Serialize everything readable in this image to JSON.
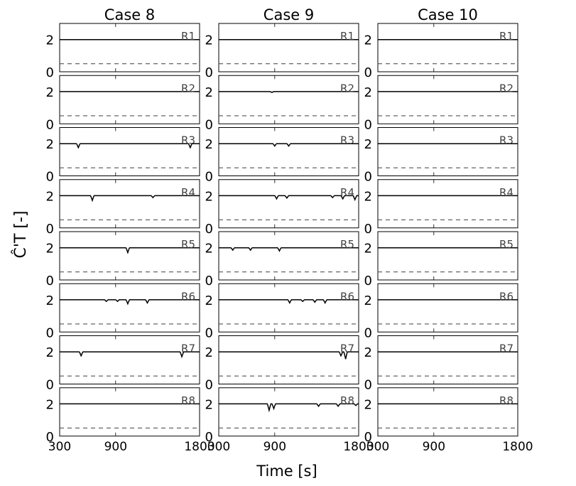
{
  "chart_data": {
    "type": "line",
    "xlabel": "Time [s]",
    "ylabel": "Ĉ'T [-]",
    "xlim": [
      300,
      1800
    ],
    "ylim": [
      0,
      3
    ],
    "xticks": [
      "300",
      "900",
      "1800"
    ],
    "yticks": [
      "0",
      "2"
    ],
    "columns": [
      "Case 8",
      "Case 9",
      "Case 10"
    ],
    "rows": [
      "R1",
      "R2",
      "R3",
      "R4",
      "R5",
      "R6",
      "R7",
      "R8"
    ],
    "series": [
      {
        "style": "solid",
        "baseline": 2.0
      },
      {
        "style": "dashed",
        "baseline": 0.5
      }
    ],
    "dips": [
      [
        [],
        [],
        [
          [
            500,
            0.25
          ],
          [
            1700,
            0.25
          ]
        ],
        [
          [
            650,
            0.3
          ],
          [
            1300,
            0.12
          ]
        ],
        [
          [
            1030,
            0.3
          ]
        ],
        [
          [
            800,
            0.1
          ],
          [
            920,
            0.1
          ],
          [
            1030,
            0.25
          ],
          [
            1240,
            0.2
          ]
        ],
        [
          [
            530,
            0.25
          ],
          [
            1610,
            0.3
          ]
        ],
        []
      ],
      [
        [],
        [
          [
            870,
            0.05
          ]
        ],
        [
          [
            900,
            0.15
          ],
          [
            1050,
            0.15
          ]
        ],
        [
          [
            920,
            0.2
          ],
          [
            1030,
            0.15
          ],
          [
            1520,
            0.12
          ],
          [
            1630,
            0.2
          ],
          [
            1760,
            0.25
          ]
        ],
        [
          [
            450,
            0.15
          ],
          [
            640,
            0.15
          ],
          [
            950,
            0.2
          ]
        ],
        [
          [
            1060,
            0.2
          ],
          [
            1200,
            0.1
          ],
          [
            1330,
            0.15
          ],
          [
            1440,
            0.2
          ]
        ],
        [
          [
            1610,
            0.25
          ],
          [
            1660,
            0.45
          ]
        ],
        [
          [
            840,
            0.4
          ],
          [
            890,
            0.3
          ],
          [
            1370,
            0.15
          ],
          [
            1580,
            0.15
          ],
          [
            1770,
            0.1
          ]
        ]
      ],
      [
        [],
        [],
        [],
        [],
        [],
        [],
        [],
        []
      ]
    ]
  }
}
